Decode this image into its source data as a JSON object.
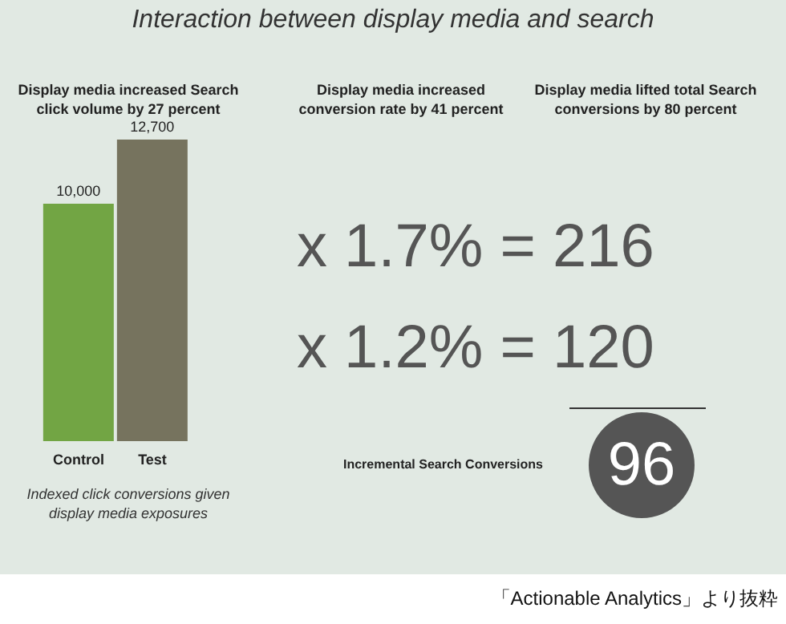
{
  "chart_data": [
    {
      "type": "bar",
      "title": "Interaction between display media and search",
      "subtitle": "Display media increased Search click volume by 27 percent",
      "categories": [
        "Control",
        "Test"
      ],
      "values": [
        10000,
        12700
      ],
      "colors": [
        "#72a544",
        "#76735e"
      ],
      "value_labels": [
        "10,000",
        "12,700"
      ],
      "annotations": [
        "Indexed click conversions given display media exposures"
      ]
    },
    {
      "type": "other",
      "annotations": [
        "Display media increased conversion rate by 41 percent",
        "Display media lifted total Search conversions by 80 percent",
        "x 1.7% = 216",
        "x 1.2% = 120",
        "Incremental Search Conversions",
        "96",
        "「Actionable Analytics」より抜粋"
      ]
    }
  ]
}
